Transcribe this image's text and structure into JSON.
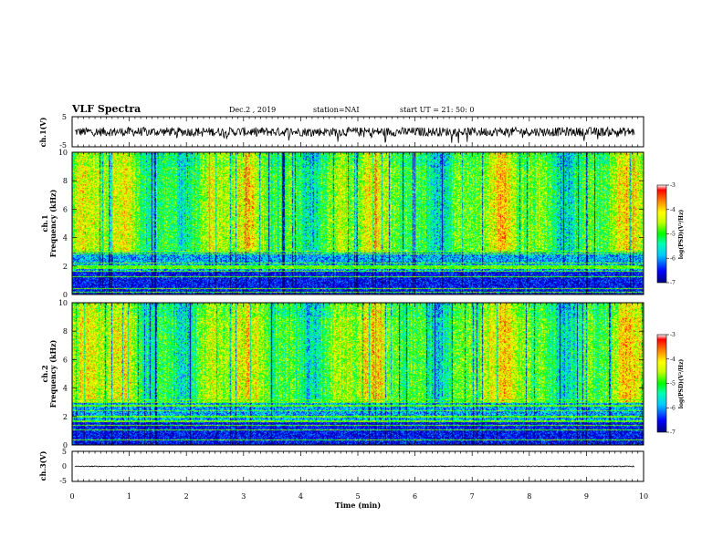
{
  "header": {
    "title": "VLF Spectra",
    "date": "Dec.2 , 2019",
    "station": "station=NAI",
    "start": "start UT =  21: 50: 0"
  },
  "colormap": {
    "stops": [
      "#00007a",
      "#0000ff",
      "#00c8ff",
      "#00ffb0",
      "#00ff00",
      "#c8ff00",
      "#ffff00",
      "#ff8000",
      "#ff0000",
      "#ffffff"
    ]
  },
  "chart_data": [
    {
      "type": "line",
      "name": "ch1-waveform",
      "ylabel": "ch.1(V)",
      "ylim": [
        -5,
        5
      ],
      "yticks": [
        "5",
        "-5"
      ],
      "xlim": [
        0,
        10
      ],
      "baseline": 0,
      "noise_amplitude": 1.5
    },
    {
      "type": "heatmap",
      "name": "ch1-spectrogram",
      "ylabel": "ch.1",
      "ylabel2": "Frequency (kHz)",
      "ylim": [
        0,
        10
      ],
      "yticks": [
        "0",
        "2",
        "4",
        "6",
        "8",
        "10"
      ],
      "xlim": [
        0,
        10
      ],
      "colorbar": {
        "label": "log(PSD)(V²/Hz)",
        "range": [
          -7,
          -3
        ],
        "ticks": [
          "-3",
          "-4",
          "-5",
          "-6",
          "-7"
        ]
      }
    },
    {
      "type": "heatmap",
      "name": "ch2-spectrogram",
      "ylabel": "ch.2",
      "ylabel2": "Frequency (kHz)",
      "ylim": [
        0,
        10
      ],
      "yticks": [
        "0",
        "2",
        "4",
        "6",
        "8",
        "10"
      ],
      "xlim": [
        0,
        10
      ],
      "colorbar": {
        "label": "log(PSD)(V²/Hz)",
        "range": [
          -7,
          -3
        ],
        "ticks": [
          "-3",
          "-4",
          "-5",
          "-6",
          "-7"
        ]
      }
    },
    {
      "type": "line",
      "name": "ch3-waveform",
      "ylabel": "ch.3(V)",
      "ylim": [
        -5,
        5
      ],
      "yticks": [
        "5",
        "0",
        "-5"
      ],
      "xlim": [
        0,
        10
      ],
      "baseline": 0,
      "noise_amplitude": 0.15
    }
  ],
  "xaxis": {
    "label": "Time (min)",
    "ticks": [
      "0",
      "1",
      "2",
      "3",
      "4",
      "5",
      "6",
      "7",
      "8",
      "9",
      "10"
    ]
  }
}
